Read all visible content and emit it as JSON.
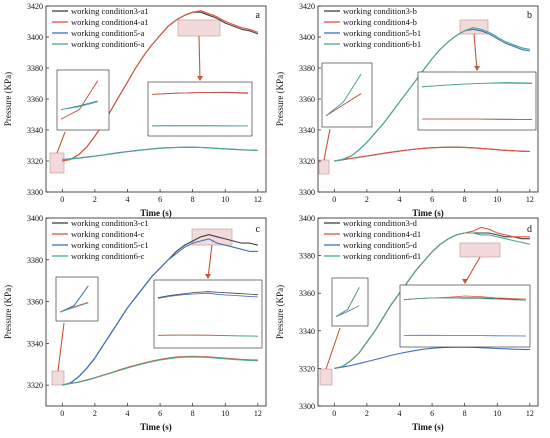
{
  "chart_data": [
    {
      "type": "line",
      "panel_label": "a",
      "xlabel": "Time (s)",
      "ylabel": "Pressure (KPa)",
      "xlim": [
        -1,
        12.5
      ],
      "ylim": [
        3300,
        3420
      ],
      "xticks": [
        0,
        2,
        4,
        6,
        8,
        10,
        12
      ],
      "yticks": [
        3300,
        3320,
        3340,
        3360,
        3380,
        3400,
        3420
      ],
      "x": [
        0,
        0.5,
        1,
        1.5,
        2,
        2.5,
        3,
        3.5,
        4,
        4.5,
        5,
        5.5,
        6,
        6.5,
        7,
        7.5,
        8,
        8.5,
        9,
        9.5,
        10,
        10.5,
        11,
        11.5,
        12
      ],
      "series": [
        {
          "name": "working condition3-a1",
          "color": "#404040",
          "values": [
            3320,
            3321,
            3324,
            3329,
            3336,
            3344,
            3353,
            3362,
            3371,
            3380,
            3388,
            3395,
            3401,
            3407,
            3411,
            3414,
            3416,
            3416,
            3414,
            3412,
            3409,
            3407,
            3405,
            3404,
            3402
          ]
        },
        {
          "name": "working condition4-a1",
          "color": "#e0533f",
          "values": [
            3320,
            3321,
            3324,
            3329,
            3336,
            3344,
            3353,
            3362,
            3371,
            3380,
            3388,
            3395,
            3401,
            3407,
            3411,
            3414,
            3416,
            3417,
            3415,
            3413,
            3410,
            3408,
            3406,
            3405,
            3403
          ]
        },
        {
          "name": "working condition5-a",
          "color": "#3f6fc5",
          "values": [
            3321,
            3321.4,
            3321.9,
            3322.5,
            3323.2,
            3323.9,
            3324.7,
            3325.4,
            3326.1,
            3326.7,
            3327.3,
            3327.8,
            3328.3,
            3328.6,
            3328.8,
            3328.9,
            3328.9,
            3328.8,
            3328.5,
            3328.2,
            3327.9,
            3327.6,
            3327.3,
            3327.1,
            3326.9
          ]
        },
        {
          "name": "working condition6-a",
          "color": "#4ca88f",
          "values": [
            3321,
            3321.3,
            3321.8,
            3322.4,
            3323.1,
            3323.8,
            3324.6,
            3325.3,
            3326,
            3326.6,
            3327.2,
            3327.7,
            3328.2,
            3328.5,
            3328.7,
            3328.8,
            3328.8,
            3328.7,
            3328.4,
            3328.1,
            3327.8,
            3327.5,
            3327.2,
            3327,
            3326.8
          ]
        }
      ]
    },
    {
      "type": "line",
      "panel_label": "b",
      "xlabel": "Time (s)",
      "ylabel": "Pressure (KPa)",
      "xlim": [
        -1,
        12.5
      ],
      "ylim": [
        3300,
        3420
      ],
      "xticks": [
        0,
        2,
        4,
        6,
        8,
        10,
        12
      ],
      "yticks": [
        3300,
        3320,
        3340,
        3360,
        3380,
        3400,
        3420
      ],
      "x": [
        0,
        0.5,
        1,
        1.5,
        2,
        2.5,
        3,
        3.5,
        4,
        4.5,
        5,
        5.5,
        6,
        6.5,
        7,
        7.5,
        8,
        8.5,
        9,
        9.5,
        10,
        10.5,
        11,
        11.5,
        12
      ],
      "series": [
        {
          "name": "working condition3-b",
          "color": "#404040",
          "values": [
            3320,
            3320.8,
            3321.6,
            3322.4,
            3323.2,
            3324,
            3324.9,
            3325.7,
            3326.4,
            3327.1,
            3327.7,
            3328.2,
            3328.6,
            3328.8,
            3328.9,
            3328.9,
            3328.8,
            3328.5,
            3328.1,
            3327.7,
            3327.3,
            3326.9,
            3326.6,
            3326.3,
            3326.1
          ]
        },
        {
          "name": "working condition4-b",
          "color": "#e0533f",
          "values": [
            3320,
            3320.8,
            3321.6,
            3322.4,
            3323.2,
            3324,
            3324.9,
            3325.7,
            3326.4,
            3327.1,
            3327.7,
            3328.2,
            3328.6,
            3328.8,
            3328.9,
            3328.9,
            3328.8,
            3328.5,
            3328.1,
            3327.7,
            3327.3,
            3326.9,
            3326.6,
            3326.3,
            3326.1
          ]
        },
        {
          "name": "working condition5-b1",
          "color": "#3f6fc5",
          "values": [
            3320,
            3321,
            3323,
            3327,
            3332,
            3338,
            3344,
            3351,
            3358,
            3365,
            3372,
            3379,
            3386,
            3392,
            3397,
            3401,
            3404,
            3405,
            3404,
            3402,
            3399,
            3396,
            3394,
            3392,
            3391
          ]
        },
        {
          "name": "working condition6-b1",
          "color": "#4ca88f",
          "values": [
            3320,
            3321,
            3323,
            3327,
            3332,
            3338,
            3344,
            3351,
            3358,
            3365,
            3372,
            3379,
            3386,
            3392,
            3397,
            3401,
            3404,
            3406,
            3405,
            3403,
            3400,
            3397,
            3395,
            3393,
            3392
          ]
        }
      ]
    },
    {
      "type": "line",
      "panel_label": "c",
      "xlabel": "Time (s)",
      "ylabel": "Pressure (KPa)",
      "xlim": [
        -1,
        12.5
      ],
      "ylim": [
        3310,
        3400
      ],
      "xticks": [
        0,
        2,
        4,
        6,
        8,
        10,
        12
      ],
      "yticks": [
        3320,
        3340,
        3360,
        3380,
        3400
      ],
      "x": [
        0,
        0.5,
        1,
        1.5,
        2,
        2.5,
        3,
        3.5,
        4,
        4.5,
        5,
        5.5,
        6,
        6.5,
        7,
        7.5,
        8,
        8.5,
        9,
        9.5,
        10,
        10.5,
        11,
        11.5,
        12
      ],
      "series": [
        {
          "name": "working condition3-c1",
          "color": "#404040",
          "values": [
            3320,
            3321,
            3324,
            3328,
            3333,
            3339,
            3345,
            3351,
            3357,
            3362,
            3367,
            3372,
            3376,
            3380,
            3384,
            3387,
            3389,
            3391,
            3392,
            3391,
            3390,
            3389,
            3388,
            3388,
            3387
          ]
        },
        {
          "name": "working condition4-c",
          "color": "#e0533f",
          "values": [
            3320,
            3320.8,
            3321.5,
            3322.5,
            3323.6,
            3324.8,
            3326,
            3327.3,
            3328.5,
            3329.6,
            3330.6,
            3331.5,
            3332.3,
            3333,
            3333.4,
            3333.7,
            3333.8,
            3333.7,
            3333.5,
            3333.2,
            3332.9,
            3332.6,
            3332.3,
            3332.1,
            3332
          ]
        },
        {
          "name": "working condition5-c1",
          "color": "#3f6fc5",
          "values": [
            3320,
            3321,
            3324,
            3328,
            3333,
            3339,
            3345,
            3351,
            3357,
            3362,
            3367,
            3372,
            3376,
            3380,
            3383,
            3386,
            3388,
            3389,
            3390,
            3388,
            3387,
            3386,
            3385,
            3384,
            3384
          ]
        },
        {
          "name": "working condition6-c",
          "color": "#4ca88f",
          "values": [
            3320,
            3320.7,
            3321.4,
            3322.3,
            3323.4,
            3324.6,
            3325.8,
            3327,
            3328.2,
            3329.3,
            3330.3,
            3331.2,
            3332,
            3332.6,
            3333.1,
            3333.4,
            3333.5,
            3333.4,
            3333.2,
            3332.9,
            3332.6,
            3332.3,
            3332,
            3331.8,
            3331.7
          ]
        }
      ]
    },
    {
      "type": "line",
      "panel_label": "d",
      "xlabel": "Time (s)",
      "ylabel": "Pressure (KPa)",
      "xlim": [
        -1,
        12.5
      ],
      "ylim": [
        3300,
        3400
      ],
      "xticks": [
        0,
        2,
        4,
        6,
        8,
        10,
        12
      ],
      "yticks": [
        3300,
        3320,
        3340,
        3360,
        3380,
        3400
      ],
      "x": [
        0,
        0.5,
        1,
        1.5,
        2,
        2.5,
        3,
        3.5,
        4,
        4.5,
        5,
        5.5,
        6,
        6.5,
        7,
        7.5,
        8,
        8.5,
        9,
        9.5,
        10,
        10.5,
        11,
        11.5,
        12
      ],
      "series": [
        {
          "name": "working condition3-d",
          "color": "#404040",
          "values": [
            3320,
            3321,
            3324,
            3328,
            3334,
            3340,
            3347,
            3354,
            3360,
            3366,
            3372,
            3377,
            3382,
            3386,
            3389,
            3391,
            3392,
            3392,
            3392,
            3392,
            3391,
            3390,
            3390,
            3389,
            3389
          ]
        },
        {
          "name": "working condition4-d1",
          "color": "#e0533f",
          "values": [
            3320,
            3321,
            3324,
            3328,
            3334,
            3340,
            3347,
            3354,
            3360,
            3366,
            3372,
            3377,
            3382,
            3386,
            3389,
            3391,
            3392,
            3393,
            3395,
            3394,
            3392,
            3391,
            3390,
            3390,
            3390
          ]
        },
        {
          "name": "working condition5-d",
          "color": "#3f6fc5",
          "values": [
            3320,
            3320.7,
            3321.5,
            3322.5,
            3323.6,
            3324.7,
            3325.8,
            3326.9,
            3327.9,
            3328.8,
            3329.6,
            3330.2,
            3330.7,
            3331,
            3331.2,
            3331.3,
            3331.3,
            3331.2,
            3331,
            3330.8,
            3330.6,
            3330.4,
            3330.2,
            3330.1,
            3330
          ]
        },
        {
          "name": "working condition6-d1",
          "color": "#4ca88f",
          "values": [
            3320,
            3321,
            3324,
            3328,
            3334,
            3340,
            3347,
            3354,
            3360,
            3366,
            3372,
            3377,
            3382,
            3386,
            3389,
            3391,
            3392,
            3392,
            3391,
            3391,
            3390,
            3389,
            3388,
            3387,
            3386
          ]
        }
      ]
    }
  ]
}
